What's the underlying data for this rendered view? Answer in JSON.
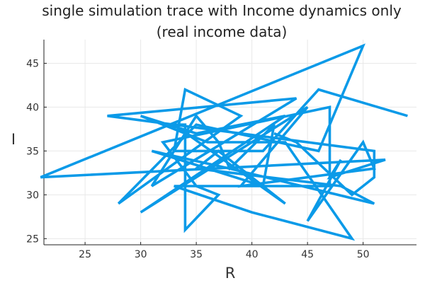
{
  "chart_data": {
    "type": "line",
    "title_lines": [
      "single simulation trace with Income dynamics only",
      "(real income data)"
    ],
    "xlabel": "R",
    "ylabel": "I",
    "xlim": [
      21.3,
      54.8
    ],
    "ylim": [
      24.3,
      47.7
    ],
    "xticks": [
      25,
      30,
      35,
      40,
      45,
      50
    ],
    "yticks": [
      25,
      30,
      35,
      40,
      45
    ],
    "grid": true,
    "legend": "none",
    "series": [
      {
        "color": "#0B9AE8",
        "x": [
          54,
          46,
          41,
          33,
          34,
          39,
          28,
          35,
          46,
          50,
          21,
          52,
          47,
          48,
          45,
          50,
          51,
          39,
          45,
          30,
          43,
          35,
          30,
          36,
          43,
          49,
          40,
          33,
          47,
          47,
          32,
          35,
          37,
          34,
          34,
          33,
          43,
          37,
          35,
          48,
          51,
          38,
          31,
          41,
          42,
          38,
          37,
          35,
          31,
          44,
          27,
          51,
          51,
          49,
          44,
          42
        ],
        "y": [
          39,
          42,
          35,
          35,
          42,
          39,
          29,
          38,
          35,
          47,
          32,
          34,
          32,
          34,
          27,
          36,
          33,
          31,
          40,
          28,
          39,
          37,
          39,
          36,
          36,
          25,
          28,
          31,
          31,
          40,
          36,
          31,
          30,
          26,
          38,
          38,
          29,
          35,
          33,
          31,
          29,
          33,
          35,
          31,
          38,
          33,
          36,
          39,
          31,
          41,
          39,
          35,
          32,
          30,
          36,
          37
        ]
      }
    ]
  }
}
